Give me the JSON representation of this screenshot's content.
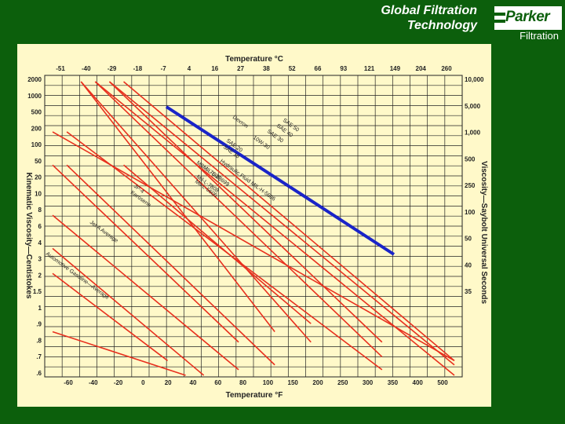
{
  "header": {
    "title_line1": "Global Filtration",
    "title_line2": "Technology"
  },
  "brand": {
    "name": "Parker",
    "subtitle": "Filtration"
  },
  "colors": {
    "background": "#0c5f0c",
    "panel": "#fff9c9",
    "grid": "#222222",
    "curve": "#e8301e",
    "highlight": "#1a24c8"
  },
  "chart_data": {
    "type": "line",
    "title": "",
    "top_axis_label": "Temperature °C",
    "bottom_axis_label": "Temperature °F",
    "left_axis_label": "Kinematic Viscosity—Centistokes",
    "right_axis_label": "Viscosity—Saybolt Universal Seconds",
    "top_ticks": [
      "-51",
      "-40",
      "-29",
      "-18",
      "-7",
      "4",
      "16",
      "27",
      "38",
      "52",
      "66",
      "93",
      "121",
      "149",
      "204",
      "260"
    ],
    "bottom_ticks": [
      "-60",
      "-40",
      "-20",
      "0",
      "20",
      "40",
      "60",
      "80",
      "100",
      "150",
      "200",
      "250",
      "300",
      "350",
      "400",
      "500"
    ],
    "left_ticks": [
      "2000",
      "1000",
      "500",
      "200",
      "100",
      "50",
      "20",
      "10",
      "8",
      "6",
      "4",
      "3",
      "2",
      "1.5",
      "1",
      ".9",
      ".8",
      ".7",
      ".6"
    ],
    "right_ticks": [
      "10,000",
      "5,000",
      "1,000",
      "500",
      "250",
      "100",
      "50",
      "40",
      "35"
    ],
    "series": [
      {
        "name": "SAE 50",
        "x": [
          4,
          260
        ],
        "y": [
          2000,
          0.9
        ]
      },
      {
        "name": "SAE 40",
        "x": [
          -7,
          260
        ],
        "y": [
          2000,
          0.8
        ]
      },
      {
        "name": "Dexron",
        "x": [
          -7,
          204
        ],
        "y": [
          2000,
          1.5
        ]
      },
      {
        "name": "SAE 30",
        "x": [
          -18,
          204
        ],
        "y": [
          2000,
          1
        ]
      },
      {
        "name": "10W-30",
        "x": [
          -18,
          260
        ],
        "y": [
          2000,
          0.6
        ]
      },
      {
        "name": "SAE 20",
        "x": [
          -29,
          149
        ],
        "y": [
          2000,
          1.5
        ]
      },
      {
        "name": "SAE 10",
        "x": [
          -29,
          121
        ],
        "y": [
          2000,
          2
        ]
      },
      {
        "name": "MIL-H-5606",
        "x": [
          -51,
          260
        ],
        "y": [
          500,
          0.9
        ]
      },
      {
        "name": "MIL-L-7808",
        "x": [
          -40,
          204
        ],
        "y": [
          500,
          0.7
        ]
      },
      {
        "name": "MIL-L-23699",
        "x": [
          -40,
          121
        ],
        "y": [
          200,
          0.8
        ]
      },
      {
        "name": "Hydraulic Fluid MIL-H-5606",
        "x": [
          4,
          149
        ],
        "y": [
          200,
          2.5
        ]
      },
      {
        "name": "MIL-L-7808",
        "x": [
          -51,
          93
        ],
        "y": [
          200,
          1.5
        ]
      },
      {
        "name": "Jet Fuel JP-4",
        "x": [
          -51,
          93
        ],
        "y": [
          50,
          0.7
        ]
      },
      {
        "name": "Kerosene",
        "x": [
          -51,
          66
        ],
        "y": [
          20,
          0.6
        ]
      },
      {
        "name": "Automotive Gasoline—Average",
        "x": [
          -51,
          52
        ],
        "y": [
          2,
          0.6
        ]
      },
      {
        "name": "Jet A Average",
        "x": [
          -51,
          38
        ],
        "y": [
          10,
          0.9
        ]
      }
    ]
  },
  "curve_labels": [
    {
      "text": "SAE 50"
    },
    {
      "text": "SAE 40"
    },
    {
      "text": "Dexron"
    },
    {
      "text": "SAE 30"
    },
    {
      "text": "10W-30"
    },
    {
      "text": "SAE 20"
    },
    {
      "text": "SAE 10"
    },
    {
      "text": "Hydraulic Fluid MIL-H-5606"
    },
    {
      "text": "MIL-L-7808"
    },
    {
      "text": "MIL-L-23699"
    },
    {
      "text": "Mil-L-7808"
    },
    {
      "text": "Mil-L-5606"
    },
    {
      "text": "JP-4"
    },
    {
      "text": "Kerosene"
    },
    {
      "text": "Jet A Average"
    },
    {
      "text": "Automotive Gasoline—Average"
    }
  ]
}
